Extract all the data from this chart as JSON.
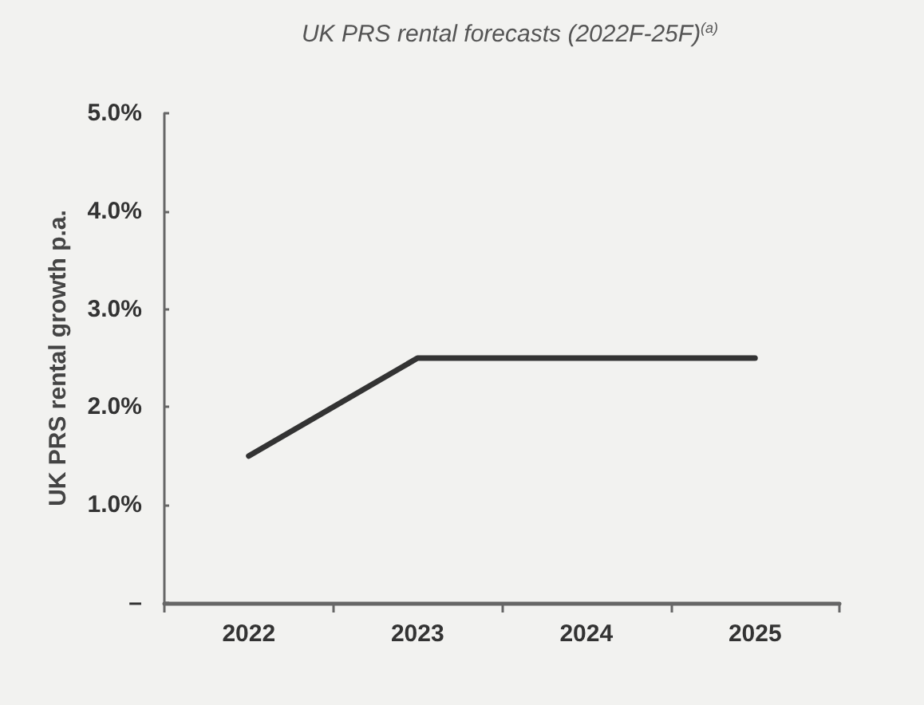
{
  "chart_data": {
    "type": "line",
    "title": "UK PRS rental forecasts (2022F-25F)$^{(a)}$",
    "ylabel": "UK PRS rental growth p.a.",
    "categories": [
      "2022",
      "2023",
      "2024",
      "2025"
    ],
    "series": [
      {
        "color": "#333333",
        "values": [
          1.5,
          2.5,
          2.5,
          2.5
        ]
      }
    ],
    "ylim": [
      0,
      5
    ],
    "yticks": [
      {
        "value": 0,
        "label": "–"
      },
      {
        "value": 1,
        "label": "1.0%"
      },
      {
        "value": 2,
        "label": "2.0%"
      },
      {
        "value": 3,
        "label": "3.0%"
      },
      {
        "value": 4,
        "label": "4.0%"
      },
      {
        "value": 5,
        "label": "5.0%"
      }
    ],
    "grid": false,
    "marker": "none",
    "line_style": "solid"
  }
}
